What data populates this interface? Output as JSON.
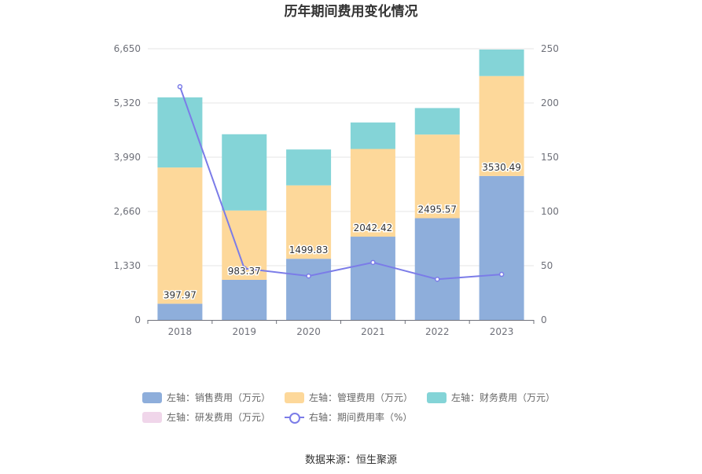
{
  "chart_data": {
    "type": "bar",
    "stacked": true,
    "title": "历年期间费用变化情况",
    "categories": [
      "2018",
      "2019",
      "2020",
      "2021",
      "2022",
      "2023"
    ],
    "left_axis": {
      "min": 0,
      "max": 6650,
      "ticks": [
        "0",
        "1,330",
        "2,660",
        "3,990",
        "5,320",
        "6,650"
      ],
      "tick_values": [
        0,
        1330,
        2660,
        3990,
        5320,
        6650
      ]
    },
    "right_axis": {
      "min": 0,
      "max": 250,
      "ticks": [
        "0",
        "50",
        "100",
        "150",
        "200",
        "250"
      ],
      "tick_values": [
        0,
        50,
        100,
        150,
        200,
        250
      ]
    },
    "series": [
      {
        "name": "左轴：销售费用（万元）",
        "axis": "left",
        "color": "#8eaedb",
        "values": [
          397.97,
          983.37,
          1499.83,
          2042.42,
          2495.57,
          3530.49
        ],
        "labels": [
          "397.97",
          "983.37",
          "1499.83",
          "2042.42",
          "2495.57",
          "3530.49"
        ]
      },
      {
        "name": "左轴：管理费用（万元）",
        "axis": "left",
        "color": "#fdd89a",
        "values": [
          3340,
          1700,
          1800,
          2150,
          2050,
          2450
        ]
      },
      {
        "name": "左轴：财务费用（万元）",
        "axis": "left",
        "color": "#84d4d7",
        "values": [
          1720,
          1870,
          880,
          650,
          650,
          650
        ]
      },
      {
        "name": "左轴：研发费用（万元）",
        "axis": "left",
        "color": "#f0d6ea",
        "values": [
          0,
          0,
          0,
          0,
          0,
          0
        ]
      },
      {
        "name": "右轴：期间费用率（%）",
        "axis": "right",
        "type": "line",
        "color": "#7b7ce8",
        "values": [
          215,
          47.5,
          40.5,
          53,
          37.5,
          42
        ]
      }
    ]
  },
  "source": "数据来源：恒生聚源"
}
